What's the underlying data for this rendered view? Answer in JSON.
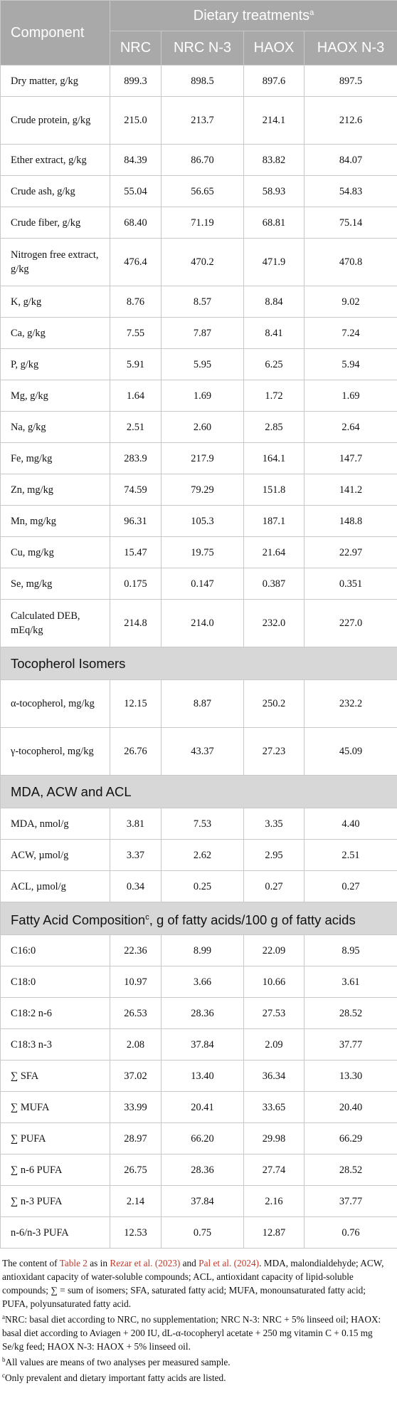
{
  "header": {
    "component": "Component",
    "dietary": "Dietary treatments",
    "dietary_sup": "a",
    "columns": [
      "NRC",
      "NRC N-3",
      "HAOX",
      "HAOX N-3"
    ]
  },
  "rows_main": [
    {
      "label": "Dry matter, g/kg",
      "values": [
        "899.3",
        "898.5",
        "897.6",
        "897.5"
      ],
      "tall": false
    },
    {
      "label": "Crude protein, g/kg",
      "values": [
        "215.0",
        "213.7",
        "214.1",
        "212.6"
      ],
      "tall": true
    },
    {
      "label": "Ether extract, g/kg",
      "values": [
        "84.39",
        "86.70",
        "83.82",
        "84.07"
      ],
      "tall": false
    },
    {
      "label": "Crude ash, g/kg",
      "values": [
        "55.04",
        "56.65",
        "58.93",
        "54.83"
      ],
      "tall": false
    },
    {
      "label": "Crude fiber, g/kg",
      "values": [
        "68.40",
        "71.19",
        "68.81",
        "75.14"
      ],
      "tall": false
    },
    {
      "label": "Nitrogen free extract, g/kg",
      "values": [
        "476.4",
        "470.2",
        "471.9",
        "470.8"
      ],
      "tall": true
    },
    {
      "label": "K, g/kg",
      "values": [
        "8.76",
        "8.57",
        "8.84",
        "9.02"
      ],
      "tall": false
    },
    {
      "label": "Ca, g/kg",
      "values": [
        "7.55",
        "7.87",
        "8.41",
        "7.24"
      ],
      "tall": false
    },
    {
      "label": "P, g/kg",
      "values": [
        "5.91",
        "5.95",
        "6.25",
        "5.94"
      ],
      "tall": false
    },
    {
      "label": "Mg, g/kg",
      "values": [
        "1.64",
        "1.69",
        "1.72",
        "1.69"
      ],
      "tall": false
    },
    {
      "label": "Na, g/kg",
      "values": [
        "2.51",
        "2.60",
        "2.85",
        "2.64"
      ],
      "tall": false
    },
    {
      "label": "Fe, mg/kg",
      "values": [
        "283.9",
        "217.9",
        "164.1",
        "147.7"
      ],
      "tall": false
    },
    {
      "label": "Zn, mg/kg",
      "values": [
        "74.59",
        "79.29",
        "151.8",
        "141.2"
      ],
      "tall": false
    },
    {
      "label": "Mn, mg/kg",
      "values": [
        "96.31",
        "105.3",
        "187.1",
        "148.8"
      ],
      "tall": false
    },
    {
      "label": "Cu, mg/kg",
      "values": [
        "15.47",
        "19.75",
        "21.64",
        "22.97"
      ],
      "tall": false
    },
    {
      "label": "Se, mg/kg",
      "values": [
        "0.175",
        "0.147",
        "0.387",
        "0.351"
      ],
      "tall": false
    },
    {
      "label": "Calculated DEB, mEq/kg",
      "values": [
        "214.8",
        "214.0",
        "232.0",
        "227.0"
      ],
      "tall": true
    }
  ],
  "section_tocopherol": "Tocopherol Isomers",
  "rows_tocopherol": [
    {
      "label": "α-tocopherol, mg/kg",
      "values": [
        "12.15",
        "8.87",
        "250.2",
        "232.2"
      ],
      "tall": true
    },
    {
      "label": "γ-tocopherol, mg/kg",
      "values": [
        "26.76",
        "43.37",
        "27.23",
        "45.09"
      ],
      "tall": true
    }
  ],
  "section_mda": "MDA, ACW and ACL",
  "rows_mda": [
    {
      "label": "MDA, nmol/g",
      "values": [
        "3.81",
        "7.53",
        "3.35",
        "4.40"
      ],
      "tall": false
    },
    {
      "label": "ACW, µmol/g",
      "values": [
        "3.37",
        "2.62",
        "2.95",
        "2.51"
      ],
      "tall": false
    },
    {
      "label": "ACL, µmol/g",
      "values": [
        "0.34",
        "0.25",
        "0.27",
        "0.27"
      ],
      "tall": false
    }
  ],
  "section_fatty": "Fatty Acid Composition",
  "section_fatty_sup": "c",
  "section_fatty_rest": ", g of fatty acids/100 g of fatty acids",
  "rows_fatty": [
    {
      "label": "C16:0",
      "values": [
        "22.36",
        "8.99",
        "22.09",
        "8.95"
      ],
      "tall": false
    },
    {
      "label": "C18:0",
      "values": [
        "10.97",
        "3.66",
        "10.66",
        "3.61"
      ],
      "tall": false
    },
    {
      "label": "C18:2 n-6",
      "values": [
        "26.53",
        "28.36",
        "27.53",
        "28.52"
      ],
      "tall": false
    },
    {
      "label": "C18:3 n-3",
      "values": [
        "2.08",
        "37.84",
        "2.09",
        "37.77"
      ],
      "tall": false
    },
    {
      "label": "∑ SFA",
      "values": [
        "37.02",
        "13.40",
        "36.34",
        "13.30"
      ],
      "tall": false
    },
    {
      "label": "∑ MUFA",
      "values": [
        "33.99",
        "20.41",
        "33.65",
        "20.40"
      ],
      "tall": false
    },
    {
      "label": "∑ PUFA",
      "values": [
        "28.97",
        "66.20",
        "29.98",
        "66.29"
      ],
      "tall": false
    },
    {
      "label": "∑ n-6 PUFA",
      "values": [
        "26.75",
        "28.36",
        "27.74",
        "28.52"
      ],
      "tall": false
    },
    {
      "label": "∑ n-3 PUFA",
      "values": [
        "2.14",
        "37.84",
        "2.16",
        "37.77"
      ],
      "tall": false
    },
    {
      "label": "n-6/n-3 PUFA",
      "values": [
        "12.53",
        "0.75",
        "12.87",
        "0.76"
      ],
      "tall": false
    }
  ],
  "footnotes": {
    "p1_a": "The content of ",
    "p1_link1": "Table 2",
    "p1_b": " as in ",
    "p1_link2": "Rezar et al. (2023)",
    "p1_c": " and ",
    "p1_link3": "Pal et al. (2024)",
    "p1_d": ". MDA, malondialdehyde; ACW, antioxidant capacity of water-soluble compounds; ACL, antioxidant capacity of lipid-soluble compounds; ∑ = sum of isomers; SFA, saturated fatty acid; MUFA, monounsaturated fatty acid; PUFA, polyunsaturated fatty acid.",
    "a_sup": "a",
    "a_text": "NRC: basal diet according to NRC, no supplementation; NRC N-3: NRC + 5% linseed oil; HAOX: basal diet according to Aviagen + 200 IU, dL-α-tocopheryl acetate + 250 mg vitamin C + 0.15 mg Se/kg feed; HAOX N-3: HAOX + 5% linseed oil.",
    "b_sup": "b",
    "b_text": "All values are means of two analyses per measured sample.",
    "c_sup": "c",
    "c_text": "Only prevalent and dietary important fatty acids are listed."
  }
}
